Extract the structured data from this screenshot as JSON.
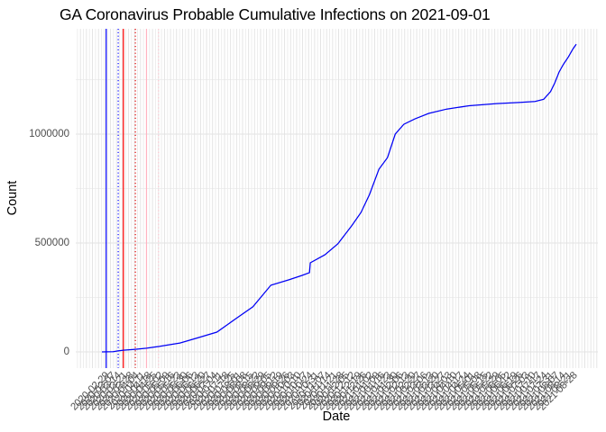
{
  "chart_data": {
    "type": "line",
    "title": "GA Coronavirus Probable Cumulative Infections on 2021-09-01",
    "xlabel": "Date",
    "ylabel": "Count",
    "legend": "none",
    "grid": true,
    "x_domain": [
      "2020-02-26",
      "2021-09-01"
    ],
    "ylim": [
      0,
      1450000
    ],
    "y_ticks": [
      {
        "label": "0",
        "value": 0
      },
      {
        "label": "500000",
        "value": 500000
      },
      {
        "label": "1000000",
        "value": 1000000
      }
    ],
    "y_minor_ticks": [
      250000,
      750000,
      1250000
    ],
    "x_ticks": [
      "2020-02-29",
      "2020-03-07",
      "2020-03-14",
      "2020-03-21",
      "2020-03-28",
      "2020-04-04",
      "2020-04-11",
      "2020-04-18",
      "2020-04-25",
      "2020-05-02",
      "2020-05-09",
      "2020-05-16",
      "2020-05-23",
      "2020-05-30",
      "2020-06-06",
      "2020-06-13",
      "2020-06-20",
      "2020-06-27",
      "2020-07-04",
      "2020-07-11",
      "2020-07-18",
      "2020-07-25",
      "2020-08-01",
      "2020-08-08",
      "2020-08-15",
      "2020-08-22",
      "2020-08-29",
      "2020-09-05",
      "2020-09-12",
      "2020-09-19",
      "2020-09-26",
      "2020-10-03",
      "2020-10-10",
      "2020-10-17",
      "2020-10-24",
      "2020-10-31",
      "2020-11-07",
      "2020-11-14",
      "2020-11-21",
      "2020-11-28",
      "2020-12-05",
      "2020-12-12",
      "2020-12-19",
      "2020-12-26",
      "2021-01-02",
      "2021-01-09",
      "2021-01-16",
      "2021-01-23",
      "2021-01-30",
      "2021-02-06",
      "2021-02-13",
      "2021-02-20",
      "2021-02-27",
      "2021-03-06",
      "2021-03-13",
      "2021-03-20",
      "2021-03-27",
      "2021-04-03",
      "2021-04-10",
      "2021-04-17",
      "2021-04-24",
      "2021-05-01",
      "2021-05-08",
      "2021-05-15",
      "2021-05-22",
      "2021-05-29",
      "2021-06-05",
      "2021-06-12",
      "2021-06-19",
      "2021-06-26",
      "2021-07-03",
      "2021-07-10",
      "2021-07-17",
      "2021-07-24",
      "2021-07-31",
      "2021-08-07",
      "2021-08-14",
      "2021-08-21",
      "2021-08-28"
    ],
    "event_vlines": [
      {
        "date": "2020-03-02",
        "color": "#0000ff",
        "style": "solid"
      },
      {
        "date": "2020-03-16",
        "color": "#0000ff",
        "style": "dotted"
      },
      {
        "date": "2020-03-22",
        "color": "#ff0000",
        "style": "solid"
      },
      {
        "date": "2020-04-05",
        "color": "#e00000",
        "style": "dotted"
      },
      {
        "date": "2020-04-18",
        "color": "#ffb3c0",
        "style": "solid"
      },
      {
        "date": "2020-05-02",
        "color": "#ffc6d0",
        "style": "dotted"
      }
    ],
    "series": [
      {
        "name": "Probable cumulative infections",
        "color": "#0000f5",
        "points": [
          [
            "2020-02-26",
            0
          ],
          [
            "2020-03-10",
            1000
          ],
          [
            "2020-03-15",
            4000
          ],
          [
            "2020-03-22",
            8000
          ],
          [
            "2020-04-05",
            12000
          ],
          [
            "2020-04-18",
            17000
          ],
          [
            "2020-05-03",
            25000
          ],
          [
            "2020-05-27",
            41000
          ],
          [
            "2020-06-18",
            66000
          ],
          [
            "2020-07-09",
            91000
          ],
          [
            "2020-07-30",
            149000
          ],
          [
            "2020-08-20",
            207000
          ],
          [
            "2020-09-10",
            306000
          ],
          [
            "2020-10-01",
            331000
          ],
          [
            "2020-10-16",
            351000
          ],
          [
            "2020-10-25",
            364000
          ],
          [
            "2020-10-26",
            409000
          ],
          [
            "2020-11-12",
            446000
          ],
          [
            "2020-11-27",
            496000
          ],
          [
            "2020-12-13",
            578000
          ],
          [
            "2020-12-24",
            640000
          ],
          [
            "2021-01-03",
            723000
          ],
          [
            "2021-01-14",
            839000
          ],
          [
            "2021-01-24",
            892000
          ],
          [
            "2021-02-02",
            1000000
          ],
          [
            "2021-02-12",
            1045000
          ],
          [
            "2021-02-25",
            1070000
          ],
          [
            "2021-03-13",
            1095000
          ],
          [
            "2021-04-03",
            1115000
          ],
          [
            "2021-04-29",
            1130000
          ],
          [
            "2021-05-31",
            1140000
          ],
          [
            "2021-06-26",
            1145000
          ],
          [
            "2021-07-15",
            1150000
          ],
          [
            "2021-07-25",
            1160000
          ],
          [
            "2021-08-02",
            1195000
          ],
          [
            "2021-08-07",
            1235000
          ],
          [
            "2021-08-12",
            1285000
          ],
          [
            "2021-08-17",
            1320000
          ],
          [
            "2021-08-23",
            1355000
          ],
          [
            "2021-08-28",
            1390000
          ],
          [
            "2021-09-01",
            1413000
          ]
        ]
      }
    ]
  }
}
